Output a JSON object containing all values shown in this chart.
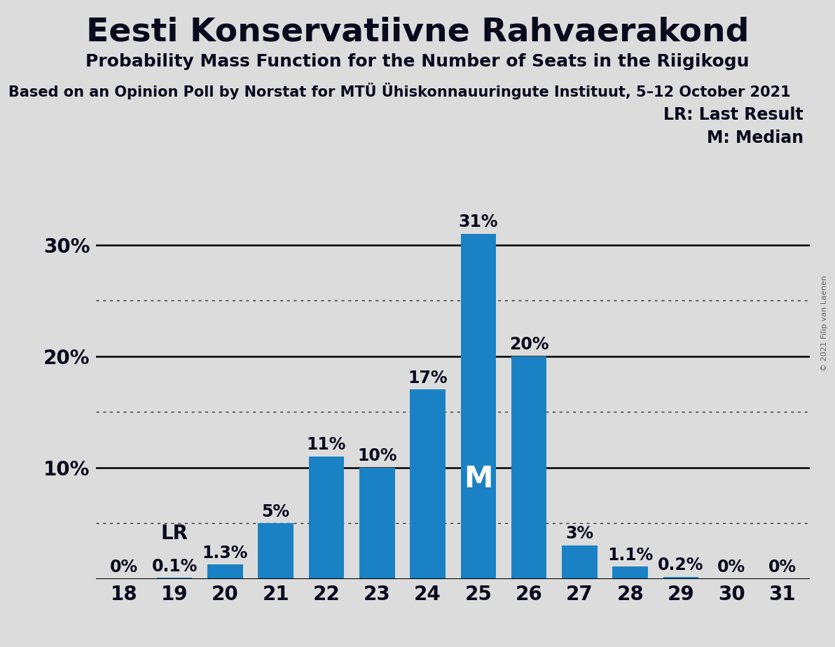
{
  "title": "Eesti Konservatiivne Rahvaerakond",
  "subtitle": "Probability Mass Function for the Number of Seats in the Riigikogu",
  "source_line": "Based on an Opinion Poll by Norstat for MTÜ Ühiskonnauuringute Instituut, 5–12 October 2021",
  "copyright": "© 2021 Filip van Laenen",
  "categories": [
    18,
    19,
    20,
    21,
    22,
    23,
    24,
    25,
    26,
    27,
    28,
    29,
    30,
    31
  ],
  "values": [
    0.0,
    0.1,
    1.3,
    5.0,
    11.0,
    10.0,
    17.0,
    31.0,
    20.0,
    3.0,
    1.1,
    0.2,
    0.0,
    0.0
  ],
  "labels": [
    "0%",
    "0.1%",
    "1.3%",
    "5%",
    "11%",
    "10%",
    "17%",
    "31%",
    "20%",
    "3%",
    "1.1%",
    "0.2%",
    "0%",
    "0%"
  ],
  "bar_color": "#1a82c4",
  "background_color": "#dcdcdc",
  "plot_background_color": "#dcdcdc",
  "lr_bar": 19,
  "lr_label": "LR",
  "median_bar": 25,
  "median_label": "M",
  "ytick_solid": [
    10,
    20,
    30
  ],
  "ytick_dotted": [
    5,
    15,
    25
  ],
  "ylim": [
    0,
    36
  ],
  "legend_lr": "LR: Last Result",
  "legend_m": "M: Median",
  "title_fontsize": 34,
  "subtitle_fontsize": 18,
  "source_fontsize": 15,
  "axis_fontsize": 20,
  "bar_label_fontsize": 17
}
